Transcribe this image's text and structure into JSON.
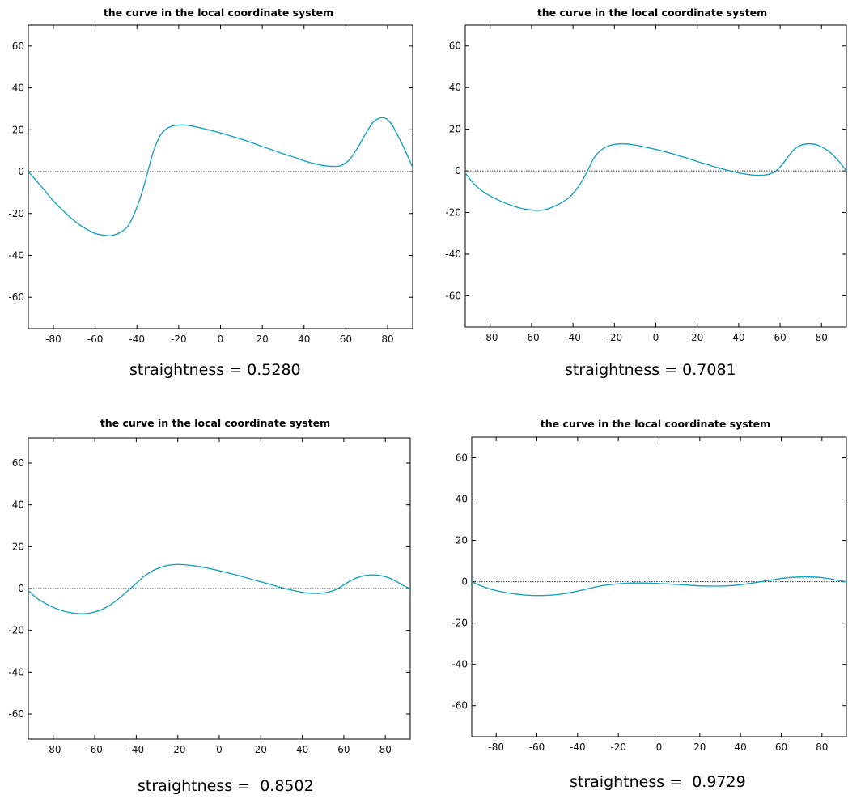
{
  "colors": {
    "curve": "#19a5bd",
    "axes": "#000000",
    "zero_line": "#333333"
  },
  "chart_data": [
    {
      "type": "line",
      "title": "the curve in the local coordinate system",
      "caption": "straightness = 0.5280",
      "xlim": [
        -92,
        92
      ],
      "ylim": [
        -75,
        70
      ],
      "xticks": [
        -80,
        -60,
        -40,
        -20,
        0,
        20,
        40,
        60,
        80
      ],
      "yticks": [
        -60,
        -40,
        -20,
        0,
        20,
        40,
        60
      ],
      "reference_line_y": 0,
      "grid": false,
      "series": [
        {
          "x": [
            -92,
            -85,
            -80,
            -75,
            -70,
            -65,
            -60,
            -55,
            -52,
            -48,
            -44,
            -40,
            -37,
            -34,
            -32,
            -30,
            -28,
            -25,
            -22,
            -18,
            -15,
            -10,
            -5,
            0,
            5,
            10,
            15,
            20,
            25,
            30,
            35,
            40,
            45,
            50,
            55,
            58,
            62,
            66,
            70,
            73,
            76,
            79,
            82,
            85,
            88,
            92
          ],
          "y": [
            0,
            -8,
            -14,
            -19,
            -23.5,
            -27,
            -29.5,
            -30.5,
            -30.5,
            -29,
            -25.5,
            -17,
            -8,
            3,
            10,
            15,
            18.5,
            21,
            22,
            22.3,
            22,
            21,
            19.8,
            18.5,
            17,
            15.5,
            13.8,
            12,
            10.3,
            8.5,
            7,
            5.2,
            3.8,
            2.8,
            2.5,
            3,
            6,
            12,
            19,
            23.5,
            25.5,
            25.5,
            22.5,
            17,
            11,
            2
          ]
        }
      ]
    },
    {
      "type": "line",
      "title": "the curve in the local coordinate system",
      "caption": "straightness = 0.7081",
      "xlim": [
        -92,
        92
      ],
      "ylim": [
        -75,
        70
      ],
      "xticks": [
        -80,
        -60,
        -40,
        -20,
        0,
        20,
        40,
        60,
        80
      ],
      "yticks": [
        -60,
        -40,
        -20,
        0,
        20,
        40,
        60
      ],
      "reference_line_y": 0,
      "grid": false,
      "series": [
        {
          "x": [
            -92,
            -88,
            -84,
            -80,
            -75,
            -70,
            -65,
            -60,
            -57,
            -53,
            -49,
            -45,
            -41,
            -37,
            -34,
            -32,
            -30,
            -27,
            -24,
            -20,
            -16,
            -12,
            -8,
            -4,
            0,
            4,
            8,
            12,
            16,
            20,
            25,
            30,
            35,
            40,
            45,
            50,
            55,
            58,
            61,
            64,
            67,
            70,
            74,
            78,
            81,
            84,
            88,
            92
          ],
          "y": [
            -1,
            -6,
            -9.5,
            -12,
            -14.5,
            -16.5,
            -18,
            -18.8,
            -19,
            -18.5,
            -17,
            -15,
            -12,
            -7,
            -2,
            2,
            6,
            9.5,
            11.5,
            12.7,
            13,
            12.7,
            12,
            11.2,
            10.3,
            9.3,
            8.2,
            7,
            5.8,
            4.5,
            3,
            1.5,
            0.2,
            -1,
            -1.8,
            -2.2,
            -1.5,
            0,
            3,
            7,
            10.5,
            12.3,
            13,
            12.4,
            11,
            9,
            5,
            0
          ]
        }
      ]
    },
    {
      "type": "line",
      "title": "the curve in the local coordinate system",
      "caption": "straightness =  0.8502",
      "xlim": [
        -92,
        92
      ],
      "ylim": [
        -72,
        72
      ],
      "xticks": [
        -80,
        -60,
        -40,
        -20,
        0,
        20,
        40,
        60,
        80
      ],
      "yticks": [
        -60,
        -40,
        -20,
        0,
        20,
        40,
        60
      ],
      "reference_line_y": 0,
      "grid": false,
      "series": [
        {
          "x": [
            -92,
            -88,
            -84,
            -80,
            -76,
            -72,
            -68,
            -64,
            -60,
            -56,
            -52,
            -48,
            -44,
            -40,
            -36,
            -32,
            -28,
            -24,
            -20,
            -16,
            -12,
            -8,
            -4,
            0,
            5,
            10,
            15,
            20,
            25,
            30,
            35,
            40,
            45,
            50,
            55,
            58,
            62,
            66,
            70,
            74,
            78,
            82,
            86,
            89,
            92
          ],
          "y": [
            -1,
            -4.5,
            -7,
            -9,
            -10.5,
            -11.5,
            -12,
            -12,
            -11.2,
            -9.8,
            -7.5,
            -4.5,
            -1,
            2.5,
            6,
            8.5,
            10.2,
            11.2,
            11.5,
            11.3,
            10.8,
            10.2,
            9.4,
            8.5,
            7.3,
            6,
            4.6,
            3.2,
            1.8,
            0.4,
            -0.8,
            -1.8,
            -2.3,
            -2.2,
            -1,
            0.5,
            3,
            5,
            6.2,
            6.5,
            6.1,
            5,
            3,
            1.2,
            0
          ]
        }
      ]
    },
    {
      "type": "line",
      "title": "the curve in the local coordinate system",
      "caption": "straightness =  0.9729",
      "xlim": [
        -92,
        92
      ],
      "ylim": [
        -75,
        70
      ],
      "xticks": [
        -80,
        -60,
        -40,
        -20,
        0,
        20,
        40,
        60,
        80
      ],
      "yticks": [
        -60,
        -40,
        -20,
        0,
        20,
        40,
        60
      ],
      "reference_line_y": 0,
      "grid": false,
      "series": [
        {
          "x": [
            -92,
            -88,
            -84,
            -80,
            -75,
            -70,
            -65,
            -60,
            -55,
            -50,
            -45,
            -40,
            -35,
            -30,
            -25,
            -20,
            -15,
            -10,
            -5,
            0,
            5,
            10,
            15,
            20,
            25,
            30,
            35,
            40,
            45,
            50,
            55,
            60,
            65,
            70,
            75,
            80,
            85,
            88,
            92
          ],
          "y": [
            0,
            -1.8,
            -3.2,
            -4.3,
            -5.3,
            -6,
            -6.5,
            -6.7,
            -6.6,
            -6.2,
            -5.5,
            -4.5,
            -3.4,
            -2.3,
            -1.5,
            -1,
            -0.7,
            -0.6,
            -0.7,
            -0.9,
            -1.1,
            -1.4,
            -1.7,
            -2,
            -2.1,
            -2.1,
            -1.9,
            -1.5,
            -0.8,
            0,
            0.8,
            1.6,
            2.1,
            2.3,
            2.3,
            2,
            1.2,
            0.6,
            0
          ]
        }
      ]
    }
  ]
}
